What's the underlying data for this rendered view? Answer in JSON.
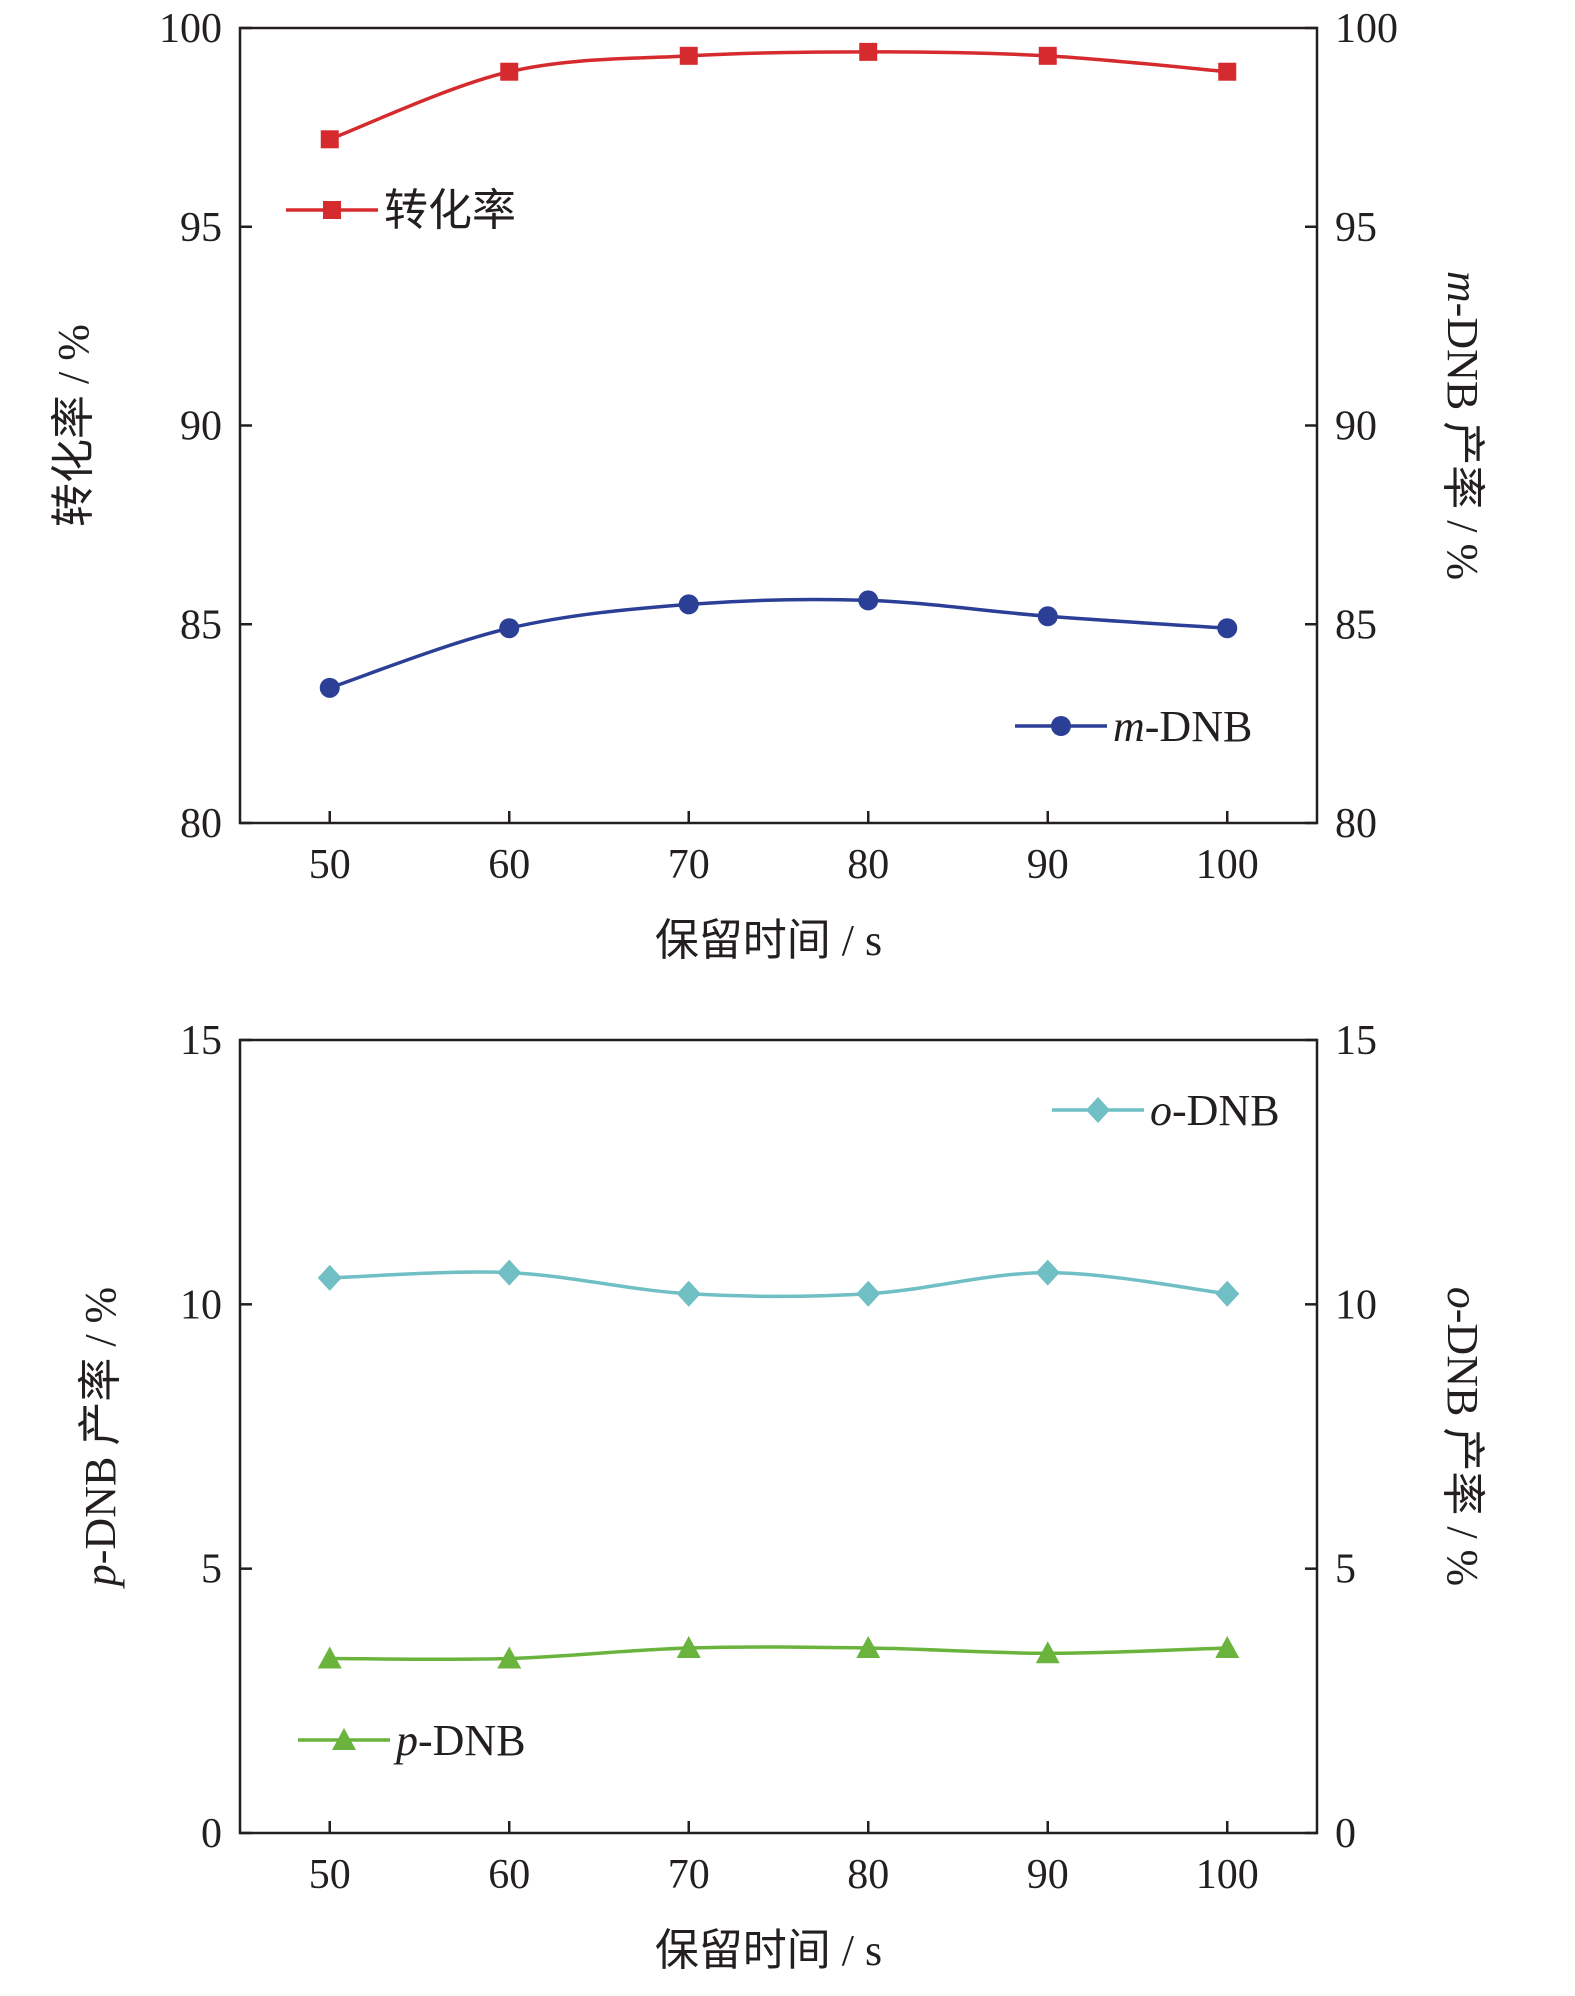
{
  "chart_data": [
    {
      "type": "line",
      "x": [
        50,
        60,
        70,
        80,
        90,
        100
      ],
      "xlabel": "保留时间 / s",
      "ylabel_left": "转化率 / %",
      "ylabel_left_parts": [
        "转化率 / %"
      ],
      "ylabel_right": "m-DNB 产率 / %",
      "ylabel_right_parts": [
        "m",
        "-DNB 产率 / %"
      ],
      "xlim": [
        45,
        105
      ],
      "ylim": [
        80,
        100
      ],
      "x_ticks": [
        "50",
        "60",
        "70",
        "80",
        "90",
        "100"
      ],
      "y_ticks": [
        "80",
        "85",
        "90",
        "95",
        "100"
      ],
      "series": [
        {
          "name": "转化率",
          "name_parts": [
            "转化率"
          ],
          "color": "#d52b2e",
          "marker": "square",
          "values": [
            97.2,
            98.9,
            99.3,
            99.4,
            99.3,
            98.9
          ]
        },
        {
          "name": "m-DNB",
          "name_parts": [
            "m",
            "-DNB"
          ],
          "color": "#2b3f97",
          "marker": "circle",
          "values": [
            83.4,
            84.9,
            85.5,
            85.6,
            85.2,
            84.9
          ]
        }
      ],
      "legend": [
        "left, upper-middle",
        "bottom-right"
      ],
      "grid": false
    },
    {
      "type": "line",
      "x": [
        50,
        60,
        70,
        80,
        90,
        100
      ],
      "xlabel": "保留时间 / s",
      "ylabel_left": "p-DNB 产率 / %",
      "ylabel_left_parts": [
        "p",
        "-DNB 产率 / %"
      ],
      "ylabel_right": "o-DNB 产率 / %",
      "ylabel_right_parts": [
        "o",
        "-DNB 产率 / %"
      ],
      "xlim": [
        45,
        105
      ],
      "ylim": [
        0,
        15
      ],
      "x_ticks": [
        "50",
        "60",
        "70",
        "80",
        "90",
        "100"
      ],
      "y_ticks": [
        "0",
        "5",
        "10",
        "15"
      ],
      "series": [
        {
          "name": "o-DNB",
          "name_parts": [
            "o",
            "-DNB"
          ],
          "color": "#6fbfc4",
          "marker": "diamond",
          "values": [
            10.5,
            10.6,
            10.2,
            10.2,
            10.6,
            10.2
          ]
        },
        {
          "name": "p-DNB",
          "name_parts": [
            "p",
            "-DNB"
          ],
          "color": "#6ab43e",
          "marker": "triangle",
          "values": [
            3.3,
            3.3,
            3.5,
            3.5,
            3.4,
            3.5
          ]
        }
      ],
      "legend": [
        "top-right",
        "bottom-left"
      ],
      "grid": false
    }
  ]
}
